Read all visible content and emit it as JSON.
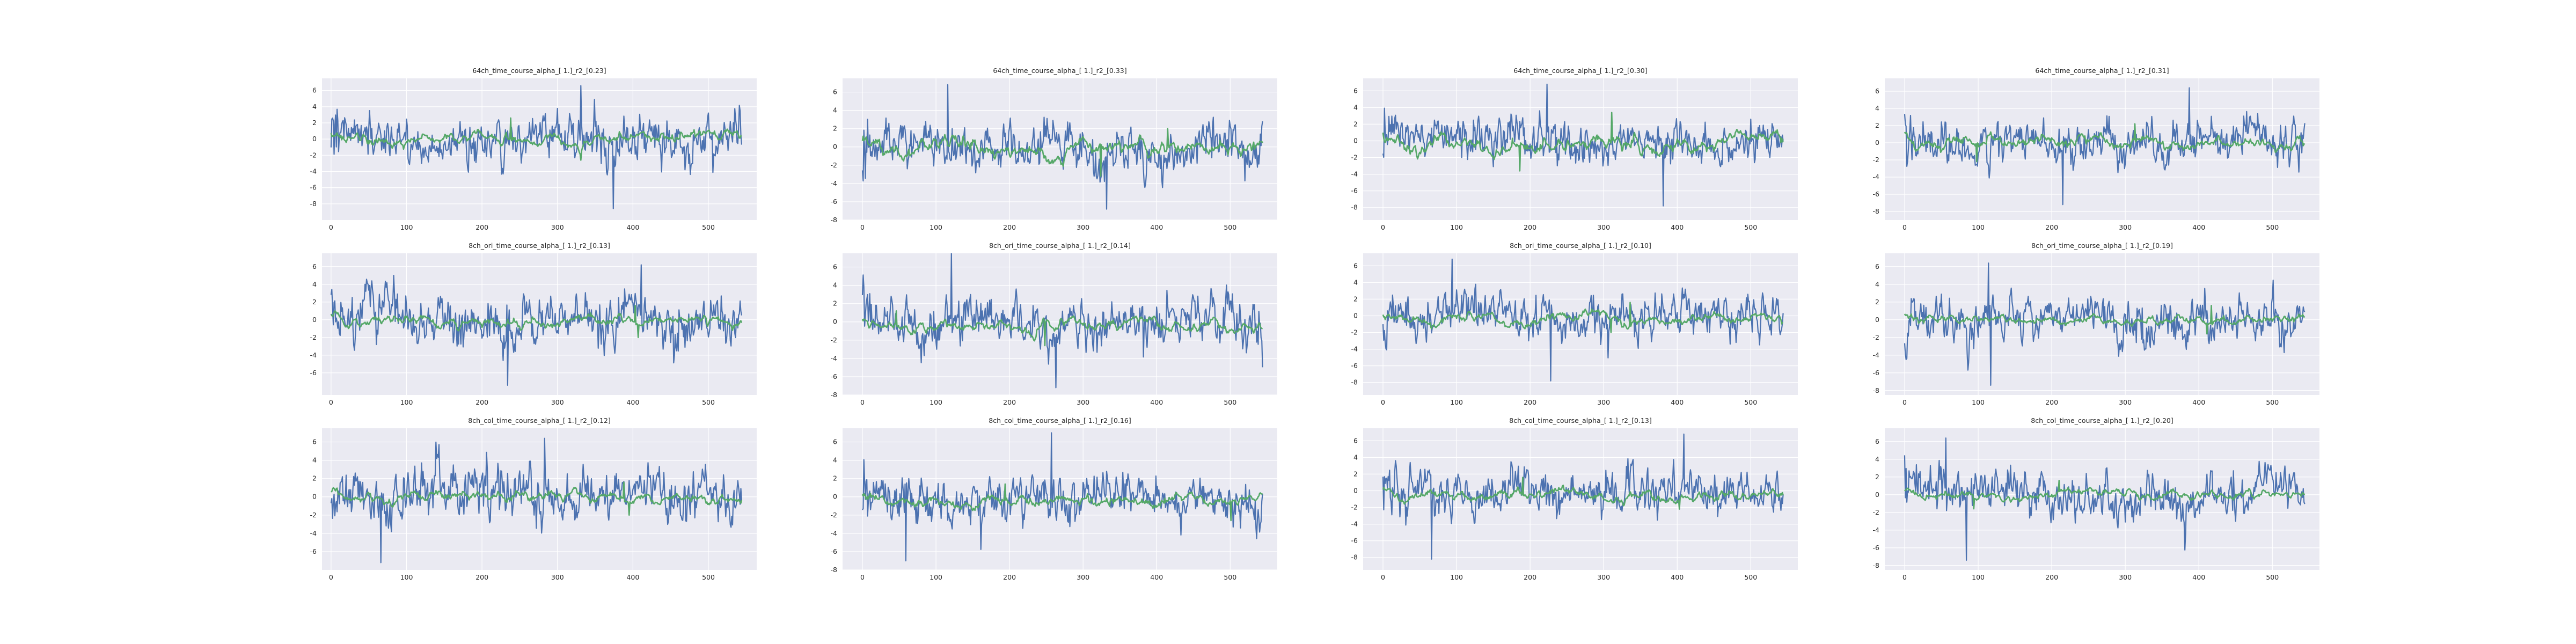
{
  "figure": {
    "background": "#ffffff",
    "axes_facecolor": "#eaeaf2",
    "grid_color": "#ffffff",
    "series_colors": [
      "#4c72b0",
      "#55a868"
    ]
  },
  "chart_data": [
    {
      "type": "line",
      "title": "64ch_time_course_alpha_[ 1.]_r2_[0.23]",
      "xlim": [
        -12,
        564
      ],
      "ylim": [
        -10,
        7.5
      ],
      "xticks": [
        0,
        100,
        200,
        300,
        400,
        500
      ],
      "yticks": [
        -8,
        -6,
        -4,
        -2,
        0,
        2,
        4,
        6
      ],
      "grid": true,
      "legend": "none",
      "series": [
        {
          "color": "#4c72b0",
          "n_points": 545,
          "x_range": [
            0,
            544
          ],
          "y_range": [
            -8.6,
            6.6
          ],
          "mean": 0.2,
          "std": 2.2
        },
        {
          "color": "#55a868",
          "n_points": 545,
          "x_range": [
            0,
            544
          ],
          "y_range": [
            -2.6,
            2.6
          ],
          "mean": 0.0,
          "std": 0.7
        }
      ]
    },
    {
      "type": "line",
      "title": "64ch_time_course_alpha_[ 1.]_r2_[0.33]",
      "xlim": [
        -27,
        564
      ],
      "ylim": [
        -8,
        7.5
      ],
      "xticks": [
        0,
        100,
        200,
        300,
        400,
        500
      ],
      "yticks": [
        -8,
        -6,
        -4,
        -2,
        0,
        2,
        4,
        6
      ],
      "grid": true,
      "legend": "none",
      "series": [
        {
          "color": "#4c72b0",
          "n_points": 545,
          "x_range": [
            0,
            544
          ],
          "y_range": [
            -6.8,
            6.8
          ],
          "mean": 0.0,
          "std": 1.9
        },
        {
          "color": "#55a868",
          "n_points": 545,
          "x_range": [
            0,
            544
          ],
          "y_range": [
            -3.2,
            2.0
          ],
          "mean": -0.2,
          "std": 0.8
        }
      ]
    },
    {
      "type": "line",
      "title": "64ch_time_course_alpha_[ 1.]_r2_[0.30]",
      "xlim": [
        -27,
        564
      ],
      "ylim": [
        -9.5,
        7.5
      ],
      "xticks": [
        0,
        100,
        200,
        300,
        400,
        500
      ],
      "yticks": [
        -8,
        -6,
        -4,
        -2,
        0,
        2,
        4,
        6
      ],
      "grid": true,
      "legend": "none",
      "series": [
        {
          "color": "#4c72b0",
          "n_points": 545,
          "x_range": [
            0,
            544
          ],
          "y_range": [
            -7.8,
            6.8
          ],
          "mean": 0.0,
          "std": 1.9
        },
        {
          "color": "#55a868",
          "n_points": 545,
          "x_range": [
            0,
            544
          ],
          "y_range": [
            -3.6,
            3.4
          ],
          "mean": -0.3,
          "std": 0.9
        }
      ]
    },
    {
      "type": "line",
      "title": "64ch_time_course_alpha_[ 1.]_r2_[0.31]",
      "xlim": [
        -27,
        564
      ],
      "ylim": [
        -9,
        7.5
      ],
      "xticks": [
        0,
        100,
        200,
        300,
        400,
        500
      ],
      "yticks": [
        -8,
        -6,
        -4,
        -2,
        0,
        2,
        4,
        6
      ],
      "grid": true,
      "legend": "none",
      "series": [
        {
          "color": "#4c72b0",
          "n_points": 545,
          "x_range": [
            0,
            544
          ],
          "y_range": [
            -7.2,
            6.4
          ],
          "mean": 0.0,
          "std": 1.9
        },
        {
          "color": "#55a868",
          "n_points": 545,
          "x_range": [
            0,
            544
          ],
          "y_range": [
            -2.2,
            2.2
          ],
          "mean": 0.0,
          "std": 0.7
        }
      ]
    },
    {
      "type": "line",
      "title": "8ch_ori_time_course_alpha_[ 1.]_r2_[0.13]",
      "xlim": [
        -12,
        564
      ],
      "ylim": [
        -8.5,
        7.5
      ],
      "xticks": [
        0,
        100,
        200,
        300,
        400,
        500
      ],
      "yticks": [
        -6,
        -4,
        -2,
        0,
        2,
        4,
        6
      ],
      "grid": true,
      "legend": "none",
      "series": [
        {
          "color": "#4c72b0",
          "n_points": 545,
          "x_range": [
            0,
            544
          ],
          "y_range": [
            -7.4,
            6.2
          ],
          "mean": 0.2,
          "std": 2.2
        },
        {
          "color": "#55a868",
          "n_points": 545,
          "x_range": [
            0,
            544
          ],
          "y_range": [
            -2.0,
            1.6
          ],
          "mean": -0.2,
          "std": 0.6
        }
      ]
    },
    {
      "type": "line",
      "title": "8ch_ori_time_course_alpha_[ 1.]_r2_[0.14]",
      "xlim": [
        -27,
        564
      ],
      "ylim": [
        -8,
        7.5
      ],
      "xticks": [
        0,
        100,
        200,
        300,
        400,
        500
      ],
      "yticks": [
        -8,
        -6,
        -4,
        -2,
        0,
        2,
        4,
        6
      ],
      "grid": true,
      "legend": "none",
      "series": [
        {
          "color": "#4c72b0",
          "n_points": 545,
          "x_range": [
            0,
            544
          ],
          "y_range": [
            -7.2,
            7.6
          ],
          "mean": 0.0,
          "std": 1.9
        },
        {
          "color": "#55a868",
          "n_points": 545,
          "x_range": [
            0,
            544
          ],
          "y_range": [
            -2.6,
            1.2
          ],
          "mean": -0.4,
          "std": 0.6
        }
      ]
    },
    {
      "type": "line",
      "title": "8ch_ori_time_course_alpha_[ 1.]_r2_[0.10]",
      "xlim": [
        -27,
        564
      ],
      "ylim": [
        -9.5,
        7.5
      ],
      "xticks": [
        0,
        100,
        200,
        300,
        400,
        500
      ],
      "yticks": [
        -8,
        -6,
        -4,
        -2,
        0,
        2,
        4,
        6
      ],
      "grid": true,
      "legend": "none",
      "series": [
        {
          "color": "#4c72b0",
          "n_points": 545,
          "x_range": [
            0,
            544
          ],
          "y_range": [
            -7.8,
            6.8
          ],
          "mean": 0.0,
          "std": 1.9
        },
        {
          "color": "#55a868",
          "n_points": 545,
          "x_range": [
            0,
            544
          ],
          "y_range": [
            -2.0,
            1.6
          ],
          "mean": -0.4,
          "std": 0.6
        }
      ]
    },
    {
      "type": "line",
      "title": "8ch_ori_time_course_alpha_[ 1.]_r2_[0.19]",
      "xlim": [
        -27,
        564
      ],
      "ylim": [
        -8.5,
        7.5
      ],
      "xticks": [
        0,
        100,
        200,
        300,
        400,
        500
      ],
      "yticks": [
        -8,
        -6,
        -4,
        -2,
        0,
        2,
        4,
        6
      ],
      "grid": true,
      "legend": "none",
      "series": [
        {
          "color": "#4c72b0",
          "n_points": 545,
          "x_range": [
            0,
            544
          ],
          "y_range": [
            -7.4,
            6.4
          ],
          "mean": 0.0,
          "std": 1.9
        },
        {
          "color": "#55a868",
          "n_points": 545,
          "x_range": [
            0,
            544
          ],
          "y_range": [
            -1.6,
            1.6
          ],
          "mean": 0.0,
          "std": 0.5
        }
      ]
    },
    {
      "type": "line",
      "title": "8ch_col_time_course_alpha_[ 1.]_r2_[0.12]",
      "xlim": [
        -12,
        564
      ],
      "ylim": [
        -8,
        7.5
      ],
      "xticks": [
        0,
        100,
        200,
        300,
        400,
        500
      ],
      "yticks": [
        -6,
        -4,
        -2,
        0,
        2,
        4,
        6
      ],
      "grid": true,
      "legend": "none",
      "series": [
        {
          "color": "#4c72b0",
          "n_points": 545,
          "x_range": [
            0,
            544
          ],
          "y_range": [
            -7.2,
            6.4
          ],
          "mean": 0.2,
          "std": 2.2
        },
        {
          "color": "#55a868",
          "n_points": 545,
          "x_range": [
            0,
            544
          ],
          "y_range": [
            -2.0,
            1.6
          ],
          "mean": -0.2,
          "std": 0.6
        }
      ]
    },
    {
      "type": "line",
      "title": "8ch_col_time_course_alpha_[ 1.]_r2_[0.16]",
      "xlim": [
        -27,
        564
      ],
      "ylim": [
        -8,
        7.5
      ],
      "xticks": [
        0,
        100,
        200,
        300,
        400,
        500
      ],
      "yticks": [
        -8,
        -6,
        -4,
        -2,
        0,
        2,
        4,
        6
      ],
      "grid": true,
      "legend": "none",
      "series": [
        {
          "color": "#4c72b0",
          "n_points": 545,
          "x_range": [
            0,
            544
          ],
          "y_range": [
            -7.0,
            7.0
          ],
          "mean": 0.0,
          "std": 1.9
        },
        {
          "color": "#55a868",
          "n_points": 545,
          "x_range": [
            0,
            544
          ],
          "y_range": [
            -2.6,
            1.4
          ],
          "mean": -0.4,
          "std": 0.6
        }
      ]
    },
    {
      "type": "line",
      "title": "8ch_col_time_course_alpha_[ 1.]_r2_[0.13]",
      "xlim": [
        -27,
        564
      ],
      "ylim": [
        -9.5,
        7.5
      ],
      "xticks": [
        0,
        100,
        200,
        300,
        400,
        500
      ],
      "yticks": [
        -8,
        -6,
        -4,
        -2,
        0,
        2,
        4,
        6
      ],
      "grid": true,
      "legend": "none",
      "series": [
        {
          "color": "#4c72b0",
          "n_points": 545,
          "x_range": [
            0,
            544
          ],
          "y_range": [
            -8.2,
            6.8
          ],
          "mean": 0.0,
          "std": 1.9
        },
        {
          "color": "#55a868",
          "n_points": 545,
          "x_range": [
            0,
            544
          ],
          "y_range": [
            -2.2,
            1.6
          ],
          "mean": -0.4,
          "std": 0.6
        }
      ]
    },
    {
      "type": "line",
      "title": "8ch_col_time_course_alpha_[ 1.]_r2_[0.20]",
      "xlim": [
        -27,
        564
      ],
      "ylim": [
        -8.5,
        7.5
      ],
      "xticks": [
        0,
        100,
        200,
        300,
        400,
        500
      ],
      "yticks": [
        -8,
        -6,
        -4,
        -2,
        0,
        2,
        4,
        6
      ],
      "grid": true,
      "legend": "none",
      "series": [
        {
          "color": "#4c72b0",
          "n_points": 545,
          "x_range": [
            0,
            544
          ],
          "y_range": [
            -7.4,
            6.4
          ],
          "mean": 0.0,
          "std": 1.9
        },
        {
          "color": "#55a868",
          "n_points": 545,
          "x_range": [
            0,
            544
          ],
          "y_range": [
            -1.6,
            1.6
          ],
          "mean": 0.0,
          "std": 0.5
        }
      ]
    }
  ]
}
